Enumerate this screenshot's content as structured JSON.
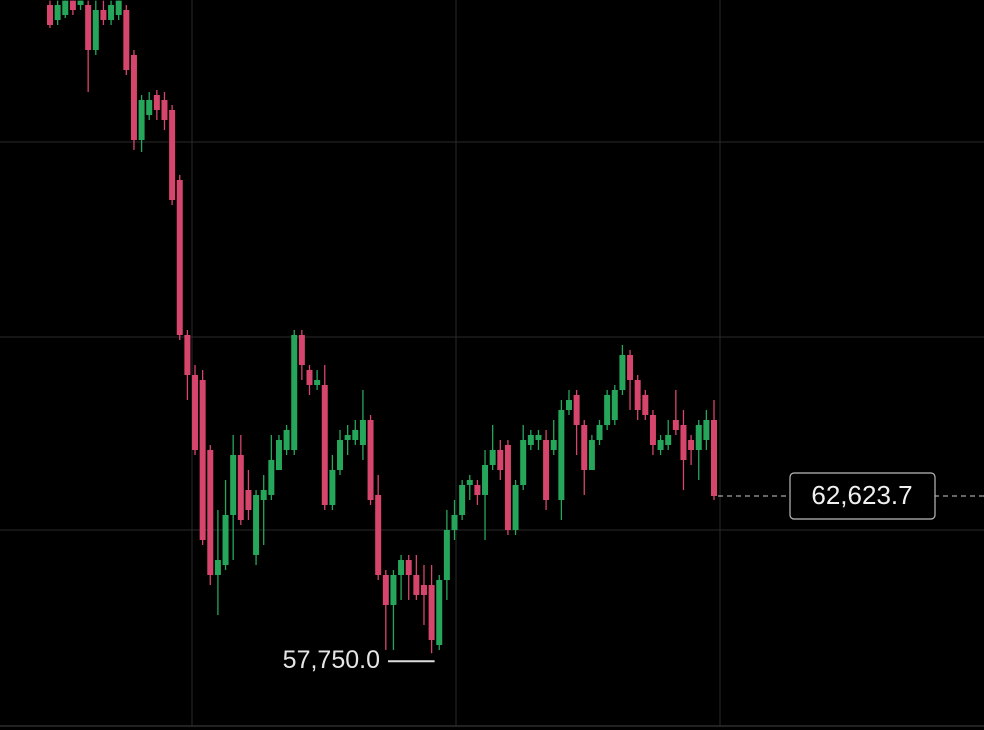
{
  "chart_data": {
    "type": "candlestick",
    "up_color": "#26a65b",
    "down_color": "#d6456c",
    "ylim": [
      55370,
      78000
    ],
    "open": [
      77845,
      77380,
      77535,
      77980,
      77845,
      77845,
      76450,
      77690,
      77380,
      77535,
      77690,
      76295,
      73660,
      74435,
      75055,
      74900,
      74590,
      72420,
      67615,
      66375,
      66220,
      64050,
      60175,
      60485,
      62035,
      63895,
      62810,
      60795,
      62500,
      62655,
      63430,
      64050,
      64050,
      67615,
      66530,
      66065,
      66065,
      62345,
      63430,
      64360,
      64360,
      64205,
      64980,
      62655,
      60175,
      59245,
      60175,
      60640,
      60175,
      59865,
      59865,
      58005,
      60020,
      61570,
      62035,
      62965,
      62965,
      62655,
      63585,
      64050,
      64205,
      61570,
      62965,
      64205,
      64360,
      64360,
      64050,
      62500,
      65290,
      65755,
      64825,
      63430,
      64360,
      64825,
      64980,
      65910,
      66995,
      66220,
      65755,
      65135,
      64050,
      64205,
      64980,
      64825,
      64360,
      64050,
      64360,
      64980
    ],
    "high": [
      77980,
      77980,
      77980,
      77980,
      77980,
      77980,
      77980,
      77980,
      77980,
      77980,
      77845,
      76450,
      75055,
      75148,
      75210,
      75148,
      74745,
      72575,
      67770,
      66685,
      66530,
      64205,
      62190,
      63120,
      64515,
      64515,
      63430,
      62810,
      63275,
      64515,
      64515,
      64825,
      67770,
      67770,
      66685,
      66530,
      66685,
      63895,
      64670,
      64825,
      64980,
      65910,
      65135,
      63275,
      60330,
      60330,
      60795,
      60795,
      60795,
      60485,
      60485,
      60175,
      62190,
      62500,
      63120,
      63275,
      63120,
      64050,
      64825,
      64360,
      64360,
      63120,
      64825,
      64670,
      64670,
      64670,
      64980,
      65600,
      65910,
      65910,
      64980,
      64515,
      64980,
      65910,
      66065,
      67305,
      67150,
      66375,
      65910,
      65290,
      64515,
      64980,
      65910,
      65290,
      64515,
      64980,
      65290,
      65600
    ],
    "low": [
      77132,
      77225,
      77442,
      77535,
      77690,
      75148,
      76295,
      77225,
      77225,
      77380,
      75675,
      73350,
      73288,
      74280,
      74280,
      73970,
      71645,
      67460,
      65600,
      63895,
      61105,
      59865,
      58935,
      60330,
      60640,
      61725,
      61880,
      60485,
      61105,
      62500,
      63430,
      63895,
      63895,
      66220,
      65755,
      65910,
      62190,
      62190,
      63275,
      63895,
      64205,
      63740,
      62345,
      60020,
      57850,
      57850,
      59400,
      59400,
      59400,
      58625,
      57750,
      57850,
      59400,
      61260,
      61880,
      62500,
      62345,
      61260,
      63430,
      63120,
      61415,
      61415,
      62810,
      64050,
      64050,
      62190,
      63895,
      61880,
      65135,
      63895,
      62655,
      63430,
      64205,
      64670,
      64825,
      65755,
      65290,
      64980,
      64980,
      63895,
      63895,
      64050,
      64515,
      62810,
      63585,
      63120,
      64050,
      62500
    ],
    "close": [
      77225,
      77845,
      77980,
      77690,
      77980,
      76450,
      77690,
      77380,
      77845,
      77980,
      75830,
      73660,
      74900,
      74900,
      74590,
      74280,
      71800,
      67615,
      66375,
      64050,
      61260,
      60175,
      60640,
      62035,
      63895,
      61880,
      62190,
      62655,
      62810,
      63740,
      64360,
      64670,
      67615,
      66685,
      66065,
      66220,
      62345,
      63430,
      64360,
      64515,
      64670,
      64980,
      62500,
      60175,
      59245,
      60175,
      60640,
      60175,
      59555,
      59555,
      58160,
      60020,
      61570,
      62035,
      62965,
      63120,
      62655,
      63585,
      64050,
      63430,
      61570,
      62965,
      64360,
      64515,
      64515,
      62500,
      64360,
      65290,
      65600,
      64825,
      63430,
      64360,
      64825,
      65755,
      65910,
      66995,
      66220,
      65290,
      65135,
      64205,
      64360,
      64515,
      64670,
      63740,
      64050,
      64825,
      64980,
      62623.7
    ],
    "low_marker": {
      "value": 57750,
      "label": "57,750.0"
    },
    "last_price": {
      "value": 62623.7,
      "label": "62,623.7"
    }
  }
}
